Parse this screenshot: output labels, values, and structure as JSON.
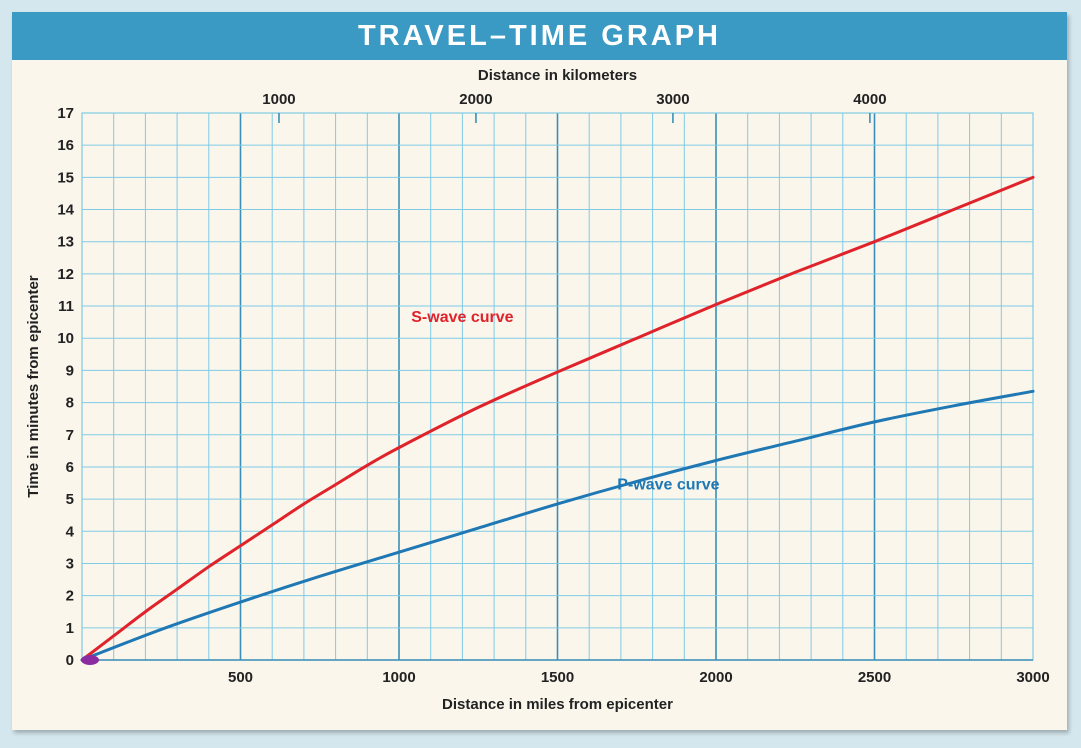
{
  "header": {
    "title": "TRAVEL–TIME GRAPH"
  },
  "colors": {
    "banner": "#3a9ac4",
    "panel_bg": "#faf6ec",
    "grid_minor": "#7fcbe6",
    "grid_major": "#3a8fb8",
    "s_wave": "#e0232b",
    "p_wave": "#1f78b4",
    "origin_marker": "#8a2ca0",
    "axis_text": "#222222"
  },
  "chart_data": {
    "type": "line",
    "title": "TRAVEL–TIME GRAPH",
    "xlabel": "Distance in miles from epicenter",
    "x2label": "Distance in kilometers",
    "ylabel": "Time in minutes from epicenter",
    "xlim": [
      0,
      3000
    ],
    "ylim": [
      0,
      17
    ],
    "x_ticks": [
      "500",
      "1000",
      "1500",
      "2000",
      "2500",
      "3000"
    ],
    "x_tick_values": [
      500,
      1000,
      1500,
      2000,
      2500,
      3000
    ],
    "x2_ticks": [
      "1000",
      "2000",
      "3000",
      "4000"
    ],
    "x2_tick_values": [
      1000,
      2000,
      3000,
      4000
    ],
    "y_ticks": [
      "0",
      "1",
      "2",
      "3",
      "4",
      "5",
      "6",
      "7",
      "8",
      "9",
      "10",
      "11",
      "12",
      "13",
      "14",
      "15",
      "16",
      "17"
    ],
    "grid": true,
    "series": [
      {
        "name": "S-wave curve",
        "label": "S-wave curve",
        "label_at": [
          1200,
          10.5
        ],
        "x": [
          0,
          100,
          200,
          300,
          400,
          500,
          600,
          700,
          800,
          900,
          1000,
          1250,
          1500,
          1750,
          2000,
          2250,
          2500,
          2750,
          3000
        ],
        "y": [
          0,
          0.75,
          1.5,
          2.2,
          2.9,
          3.55,
          4.2,
          4.85,
          5.45,
          6.05,
          6.6,
          7.85,
          8.95,
          10.0,
          11.05,
          12.05,
          13.0,
          14.0,
          15.0
        ]
      },
      {
        "name": "P-wave curve",
        "label": "P-wave curve",
        "label_at": [
          1850,
          5.3
        ],
        "x": [
          0,
          250,
          500,
          750,
          1000,
          1250,
          1500,
          1750,
          2000,
          2250,
          2500,
          2750,
          3000
        ],
        "y": [
          0,
          0.95,
          1.8,
          2.6,
          3.35,
          4.1,
          4.85,
          5.55,
          6.2,
          6.8,
          7.4,
          7.9,
          8.35
        ]
      }
    ]
  }
}
